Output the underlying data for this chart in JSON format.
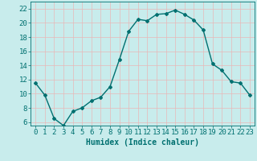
{
  "x": [
    0,
    1,
    2,
    3,
    4,
    5,
    6,
    7,
    8,
    9,
    10,
    11,
    12,
    13,
    14,
    15,
    16,
    17,
    18,
    19,
    20,
    21,
    22,
    23
  ],
  "y": [
    11.5,
    9.8,
    6.5,
    5.5,
    7.5,
    8.0,
    9.0,
    9.5,
    11.0,
    14.8,
    18.8,
    20.5,
    20.3,
    21.2,
    21.3,
    21.8,
    21.2,
    20.4,
    19.0,
    14.2,
    13.3,
    11.7,
    11.5,
    9.8
  ],
  "line_color": "#007070",
  "marker": "D",
  "marker_size": 2.0,
  "linewidth": 1.0,
  "xlabel": "Humidex (Indice chaleur)",
  "xlabel_fontsize": 7,
  "ylabel_ticks": [
    6,
    8,
    10,
    12,
    14,
    16,
    18,
    20,
    22
  ],
  "xticks": [
    0,
    1,
    2,
    3,
    4,
    5,
    6,
    7,
    8,
    9,
    10,
    11,
    12,
    13,
    14,
    15,
    16,
    17,
    18,
    19,
    20,
    21,
    22,
    23
  ],
  "xlim": [
    -0.5,
    23.5
  ],
  "ylim": [
    5.5,
    23.0
  ],
  "bg_color": "#c8ecec",
  "grid_color": "#e8b8b8",
  "tick_fontsize": 6.5
}
